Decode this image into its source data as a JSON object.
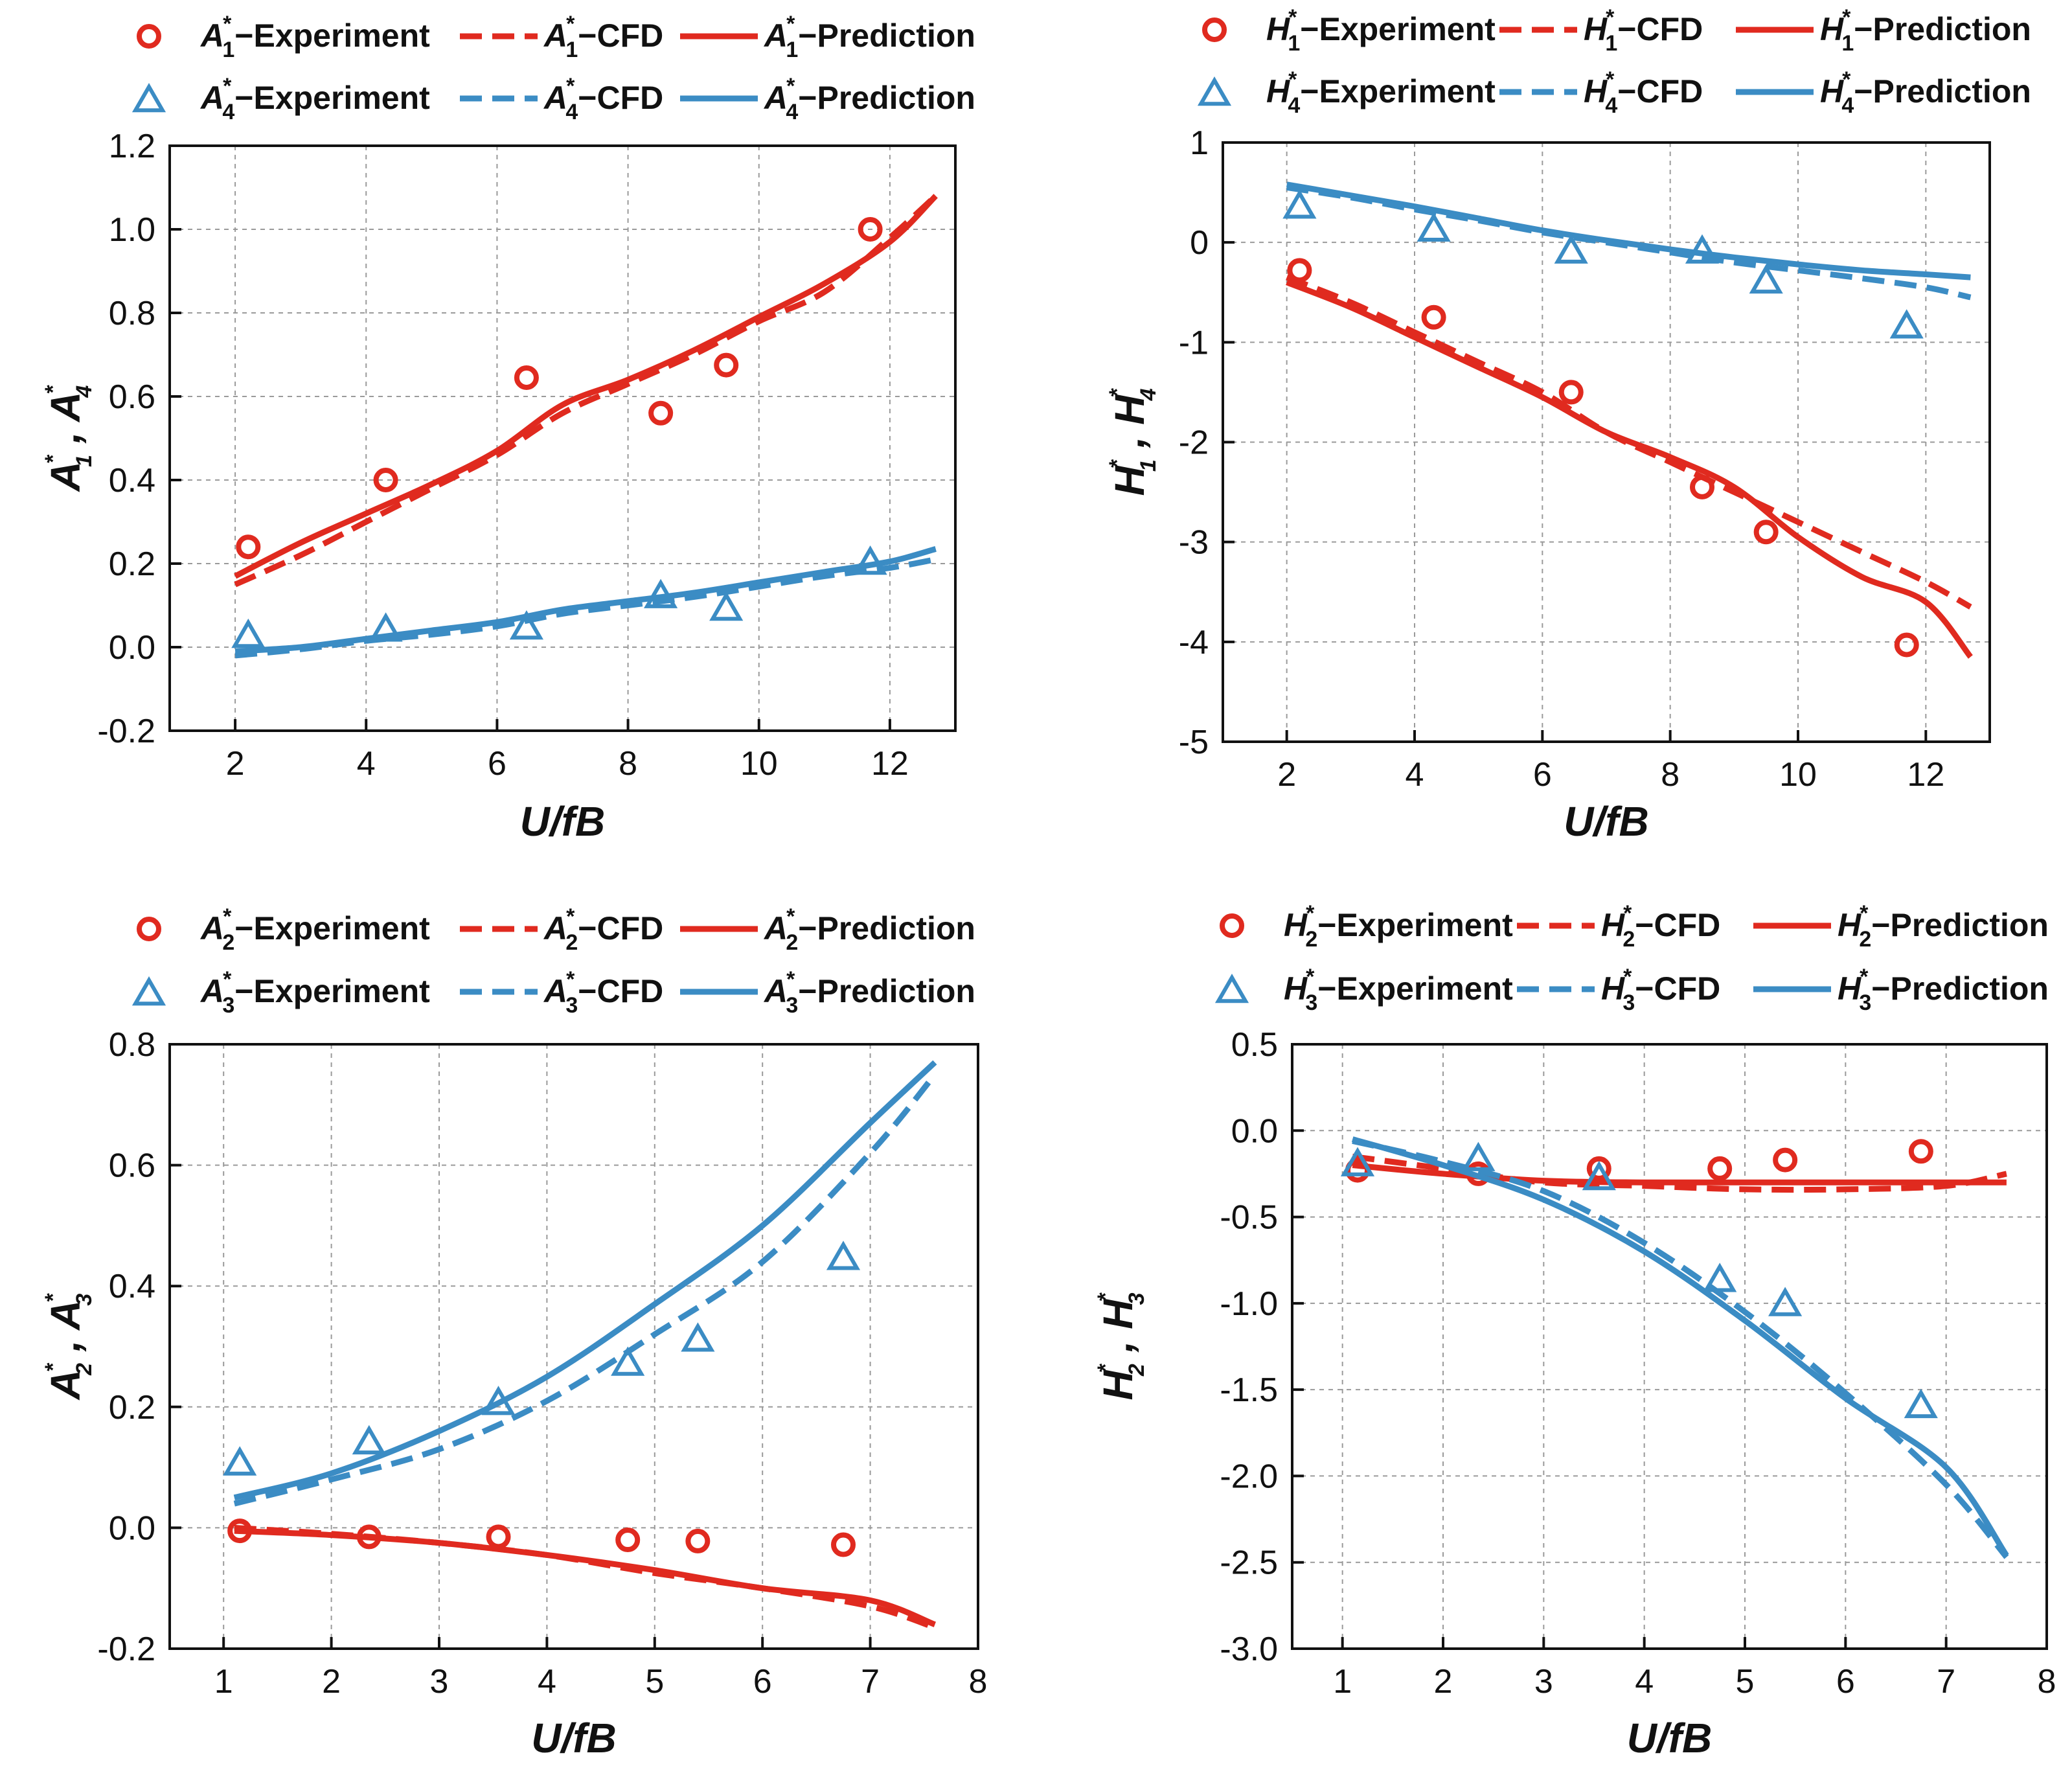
{
  "colors": {
    "red": "#e02a1f",
    "blue": "#3b8cc4",
    "axis": "#111111",
    "grid": "#9a9a9a"
  },
  "chart_data": [
    {
      "type": "line",
      "xlabel": "U/fB",
      "ylabel": {
        "sym": "A",
        "sub1": "1",
        "sub2": "4",
        "sup": "*"
      },
      "xlim": [
        1,
        13
      ],
      "ylim": [
        -0.2,
        1.2
      ],
      "xticks": [
        "2",
        "4",
        "6",
        "8",
        "10",
        "12"
      ],
      "yticks": [
        "-0.2",
        "0.0",
        "0.2",
        "0.4",
        "0.6",
        "0.8",
        "1.0",
        "1.2"
      ],
      "legend_position": "top",
      "series": [
        {
          "name": "A1*-Experiment",
          "sym": "A",
          "sub": "1",
          "suffix": "−Experiment",
          "color": "#e02a1f",
          "style": "marker-circle",
          "x": [
            2.2,
            4.3,
            6.45,
            8.5,
            9.5,
            11.7
          ],
          "y": [
            0.24,
            0.4,
            0.645,
            0.56,
            0.675,
            1.0
          ]
        },
        {
          "name": "A1*-CFD",
          "sym": "A",
          "sub": "1",
          "suffix": "−CFD",
          "color": "#e02a1f",
          "style": "dashed",
          "x": [
            2,
            3,
            4,
            5,
            6,
            7,
            8,
            9,
            10,
            11,
            12,
            12.7
          ],
          "y": [
            0.15,
            0.22,
            0.3,
            0.38,
            0.46,
            0.56,
            0.63,
            0.7,
            0.78,
            0.85,
            0.98,
            1.08
          ]
        },
        {
          "name": "A1*-Prediction",
          "sym": "A",
          "sub": "1",
          "suffix": "−Prediction",
          "color": "#e02a1f",
          "style": "solid",
          "x": [
            2,
            3,
            4,
            5,
            6,
            7,
            8,
            9,
            10,
            11,
            12,
            12.7
          ],
          "y": [
            0.17,
            0.25,
            0.32,
            0.39,
            0.47,
            0.58,
            0.64,
            0.71,
            0.79,
            0.87,
            0.97,
            1.08
          ]
        },
        {
          "name": "A4*-Experiment",
          "sym": "A",
          "sub": "4",
          "suffix": "−Experiment",
          "color": "#3b8cc4",
          "style": "marker-triangle",
          "x": [
            2.2,
            4.3,
            6.45,
            8.5,
            9.5,
            11.7
          ],
          "y": [
            0.025,
            0.04,
            0.045,
            0.12,
            0.09,
            0.2
          ]
        },
        {
          "name": "A4*-CFD",
          "sym": "A",
          "sub": "4",
          "suffix": "−CFD",
          "color": "#3b8cc4",
          "style": "dashed",
          "x": [
            2,
            3,
            4,
            5,
            6,
            7,
            8,
            9,
            10,
            11,
            12,
            12.7
          ],
          "y": [
            -0.02,
            -0.005,
            0.015,
            0.03,
            0.05,
            0.08,
            0.1,
            0.12,
            0.145,
            0.17,
            0.19,
            0.21
          ]
        },
        {
          "name": "A4*-Prediction",
          "sym": "A",
          "sub": "4",
          "suffix": "−Prediction",
          "color": "#3b8cc4",
          "style": "solid",
          "x": [
            2,
            3,
            4,
            5,
            6,
            7,
            8,
            9,
            10,
            11,
            12,
            12.7
          ],
          "y": [
            -0.01,
            0.0,
            0.02,
            0.04,
            0.06,
            0.09,
            0.11,
            0.13,
            0.155,
            0.18,
            0.205,
            0.235
          ]
        }
      ]
    },
    {
      "type": "line",
      "xlabel": "U/fB",
      "ylabel": {
        "sym": "H",
        "sub1": "1",
        "sub2": "4",
        "sup": "*"
      },
      "xlim": [
        1,
        13
      ],
      "ylim": [
        -5,
        1
      ],
      "xticks": [
        "2",
        "4",
        "6",
        "8",
        "10",
        "12"
      ],
      "yticks": [
        "-5",
        "-4",
        "-3",
        "-2",
        "-1",
        "0",
        "1"
      ],
      "legend_position": "top",
      "series": [
        {
          "name": "H1*-Experiment",
          "sym": "H",
          "sub": "1",
          "suffix": "−Experiment",
          "color": "#e02a1f",
          "style": "marker-circle",
          "x": [
            2.2,
            4.3,
            6.45,
            8.5,
            9.5,
            11.7
          ],
          "y": [
            -0.28,
            -0.75,
            -1.5,
            -2.45,
            -2.9,
            -4.03
          ]
        },
        {
          "name": "H1*-CFD",
          "sym": "H",
          "sub": "1",
          "suffix": "−CFD",
          "color": "#e02a1f",
          "style": "dashed",
          "x": [
            2,
            3,
            4,
            5,
            6,
            7,
            8,
            9,
            10,
            11,
            12,
            12.7
          ],
          "y": [
            -0.35,
            -0.6,
            -0.9,
            -1.2,
            -1.5,
            -1.9,
            -2.2,
            -2.5,
            -2.8,
            -3.1,
            -3.4,
            -3.65
          ]
        },
        {
          "name": "H1*-Prediction",
          "sym": "H",
          "sub": "1",
          "suffix": "−Prediction",
          "color": "#e02a1f",
          "style": "solid",
          "x": [
            2,
            3,
            4,
            5,
            6,
            7,
            8,
            9,
            10,
            11,
            12,
            12.7
          ],
          "y": [
            -0.4,
            -0.65,
            -0.95,
            -1.25,
            -1.55,
            -1.9,
            -2.15,
            -2.45,
            -2.95,
            -3.35,
            -3.6,
            -4.15
          ]
        },
        {
          "name": "H4*-Experiment",
          "sym": "H",
          "sub": "4",
          "suffix": "−Experiment",
          "color": "#3b8cc4",
          "style": "marker-triangle",
          "x": [
            2.2,
            4.3,
            6.45,
            8.5,
            9.5,
            11.7
          ],
          "y": [
            0.35,
            0.12,
            -0.1,
            -0.1,
            -0.4,
            -0.85
          ]
        },
        {
          "name": "H4*-CFD",
          "sym": "H",
          "sub": "4",
          "suffix": "−CFD",
          "color": "#3b8cc4",
          "style": "dashed",
          "x": [
            2,
            3,
            4,
            5,
            6,
            7,
            8,
            9,
            10,
            11,
            12,
            12.7
          ],
          "y": [
            0.55,
            0.45,
            0.33,
            0.22,
            0.1,
            0.0,
            -0.1,
            -0.2,
            -0.28,
            -0.36,
            -0.45,
            -0.55
          ]
        },
        {
          "name": "H4*-Prediction",
          "sym": "H",
          "sub": "4",
          "suffix": "−Prediction",
          "color": "#3b8cc4",
          "style": "solid",
          "x": [
            2,
            3,
            4,
            5,
            6,
            7,
            8,
            9,
            10,
            11,
            12,
            12.7
          ],
          "y": [
            0.58,
            0.47,
            0.36,
            0.24,
            0.12,
            0.02,
            -0.07,
            -0.15,
            -0.22,
            -0.28,
            -0.32,
            -0.35
          ]
        }
      ]
    },
    {
      "type": "line",
      "xlabel": "U/fB",
      "ylabel": {
        "sym": "A",
        "sub1": "2",
        "sub2": "3",
        "sup": "*"
      },
      "xlim": [
        0.5,
        8
      ],
      "ylim": [
        -0.2,
        0.8
      ],
      "xticks": [
        "1",
        "2",
        "3",
        "4",
        "5",
        "6",
        "7",
        "8"
      ],
      "yticks": [
        "-0.2",
        "0.0",
        "0.2",
        "0.4",
        "0.6",
        "0.8"
      ],
      "legend_position": "top",
      "series": [
        {
          "name": "A2*-Experiment",
          "sym": "A",
          "sub": "2",
          "suffix": "−Experiment",
          "color": "#e02a1f",
          "style": "marker-circle",
          "x": [
            1.15,
            2.35,
            3.55,
            4.75,
            5.4,
            6.75
          ],
          "y": [
            -0.005,
            -0.015,
            -0.015,
            -0.02,
            -0.022,
            -0.028
          ]
        },
        {
          "name": "A2*-CFD",
          "sym": "A",
          "sub": "2",
          "suffix": "−CFD",
          "color": "#e02a1f",
          "style": "dashed",
          "x": [
            1.1,
            2,
            3,
            4,
            5,
            6,
            7,
            7.6
          ],
          "y": [
            0.0,
            -0.01,
            -0.025,
            -0.045,
            -0.075,
            -0.1,
            -0.13,
            -0.165
          ]
        },
        {
          "name": "A2*-Prediction",
          "sym": "A",
          "sub": "2",
          "suffix": "−Prediction",
          "color": "#e02a1f",
          "style": "solid",
          "x": [
            1.1,
            2,
            3,
            4,
            5,
            6,
            7,
            7.6
          ],
          "y": [
            -0.005,
            -0.012,
            -0.025,
            -0.045,
            -0.07,
            -0.1,
            -0.12,
            -0.16
          ]
        },
        {
          "name": "A3*-Experiment",
          "sym": "A",
          "sub": "3",
          "suffix": "−Experiment",
          "color": "#3b8cc4",
          "style": "marker-triangle",
          "x": [
            1.15,
            2.35,
            3.55,
            4.75,
            5.4,
            6.75
          ],
          "y": [
            0.105,
            0.14,
            0.205,
            0.27,
            0.31,
            0.445
          ]
        },
        {
          "name": "A3*-CFD",
          "sym": "A",
          "sub": "3",
          "suffix": "−CFD",
          "color": "#3b8cc4",
          "style": "dashed",
          "x": [
            1.1,
            2,
            3,
            4,
            5,
            6,
            7,
            7.6
          ],
          "y": [
            0.04,
            0.08,
            0.13,
            0.21,
            0.32,
            0.44,
            0.62,
            0.75
          ]
        },
        {
          "name": "A3*-Prediction",
          "sym": "A",
          "sub": "3",
          "suffix": "−Prediction",
          "color": "#3b8cc4",
          "style": "solid",
          "x": [
            1.1,
            2,
            3,
            4,
            5,
            6,
            7,
            7.6
          ],
          "y": [
            0.05,
            0.09,
            0.16,
            0.25,
            0.37,
            0.5,
            0.67,
            0.77
          ]
        }
      ]
    },
    {
      "type": "line",
      "xlabel": "U/fB",
      "ylabel": {
        "sym": "H",
        "sub1": "2",
        "sub2": "3",
        "sup": "*"
      },
      "xlim": [
        0.5,
        8
      ],
      "ylim": [
        -3.0,
        0.5
      ],
      "xticks": [
        "1",
        "2",
        "3",
        "4",
        "5",
        "6",
        "7",
        "8"
      ],
      "yticks": [
        "-3.0",
        "-2.5",
        "-2.0",
        "-1.5",
        "-1.0",
        "-0.5",
        "0.0",
        "0.5"
      ],
      "legend_position": "top",
      "series": [
        {
          "name": "H2*-Experiment",
          "sym": "H",
          "sub": "2",
          "suffix": "−Experiment",
          "color": "#e02a1f",
          "style": "marker-circle",
          "x": [
            1.15,
            2.35,
            3.55,
            4.75,
            5.4,
            6.75
          ],
          "y": [
            -0.23,
            -0.25,
            -0.22,
            -0.22,
            -0.17,
            -0.12
          ]
        },
        {
          "name": "H2*-CFD",
          "sym": "H",
          "sub": "2",
          "suffix": "−CFD",
          "color": "#e02a1f",
          "style": "dashed",
          "x": [
            1.1,
            2,
            3,
            4,
            5,
            6,
            7,
            7.6
          ],
          "y": [
            -0.15,
            -0.22,
            -0.3,
            -0.32,
            -0.34,
            -0.34,
            -0.32,
            -0.25
          ]
        },
        {
          "name": "H2*-Prediction",
          "sym": "H",
          "sub": "2",
          "suffix": "−Prediction",
          "color": "#e02a1f",
          "style": "solid",
          "x": [
            1.1,
            2,
            3,
            4,
            5,
            6,
            7,
            7.6
          ],
          "y": [
            -0.2,
            -0.25,
            -0.29,
            -0.3,
            -0.3,
            -0.3,
            -0.3,
            -0.3
          ]
        },
        {
          "name": "H3*-Experiment",
          "sym": "H",
          "sub": "3",
          "suffix": "−Experiment",
          "color": "#3b8cc4",
          "style": "marker-triangle",
          "x": [
            1.15,
            2.35,
            3.55,
            4.75,
            5.4,
            6.75
          ],
          "y": [
            -0.2,
            -0.17,
            -0.28,
            -0.87,
            -1.01,
            -1.6
          ]
        },
        {
          "name": "H3*-CFD",
          "sym": "H",
          "sub": "3",
          "suffix": "−CFD",
          "color": "#3b8cc4",
          "style": "dashed",
          "x": [
            1.1,
            2,
            3,
            4,
            5,
            6,
            7,
            7.6
          ],
          "y": [
            -0.06,
            -0.18,
            -0.35,
            -0.65,
            -1.05,
            -1.52,
            -2.05,
            -2.47
          ]
        },
        {
          "name": "H3*-Prediction",
          "sym": "H",
          "sub": "3",
          "suffix": "−Prediction",
          "color": "#3b8cc4",
          "style": "solid",
          "x": [
            1.1,
            2,
            3,
            4,
            5,
            6,
            7,
            7.6
          ],
          "y": [
            -0.05,
            -0.2,
            -0.4,
            -0.7,
            -1.1,
            -1.55,
            -1.95,
            -2.46
          ]
        }
      ]
    }
  ]
}
